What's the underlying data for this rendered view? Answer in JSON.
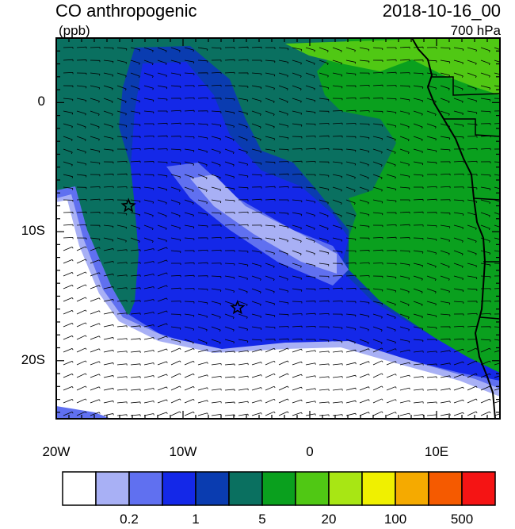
{
  "header": {
    "variable": "CO anthropogenic",
    "units": "(ppb)",
    "datetime": "2018-10-16_00",
    "level": "700 hPa"
  },
  "map": {
    "lon_range": [
      -20,
      15
    ],
    "lat_range": [
      -24.5,
      5
    ],
    "lon_ticks": [
      {
        "value": -20,
        "label": "20W"
      },
      {
        "value": -10,
        "label": "10W"
      },
      {
        "value": 0,
        "label": "0"
      },
      {
        "value": 10,
        "label": "10E"
      }
    ],
    "lat_ticks": [
      {
        "value": 0,
        "label": "0"
      },
      {
        "value": -10,
        "label": "10S"
      },
      {
        "value": -20,
        "label": "20S"
      }
    ],
    "markers": [
      {
        "lon": -14.3,
        "lat": -8.0,
        "symbol": "star"
      },
      {
        "lon": -5.7,
        "lat": -15.9,
        "symbol": "star"
      }
    ]
  },
  "colorbar": {
    "colors": [
      "#ffffff",
      "#a8b0f5",
      "#6070f0",
      "#1428e8",
      "#0a3cb0",
      "#0a7060",
      "#0aa01e",
      "#50c814",
      "#a8e614",
      "#f0f000",
      "#f5aa00",
      "#f55a00",
      "#f51414"
    ],
    "labels": [
      {
        "after_box": 2,
        "text": "0.2"
      },
      {
        "after_box": 4,
        "text": "1"
      },
      {
        "after_box": 6,
        "text": "5"
      },
      {
        "after_box": 8,
        "text": "20"
      },
      {
        "after_box": 10,
        "text": "100"
      },
      {
        "after_box": 12,
        "text": "500"
      }
    ]
  }
}
